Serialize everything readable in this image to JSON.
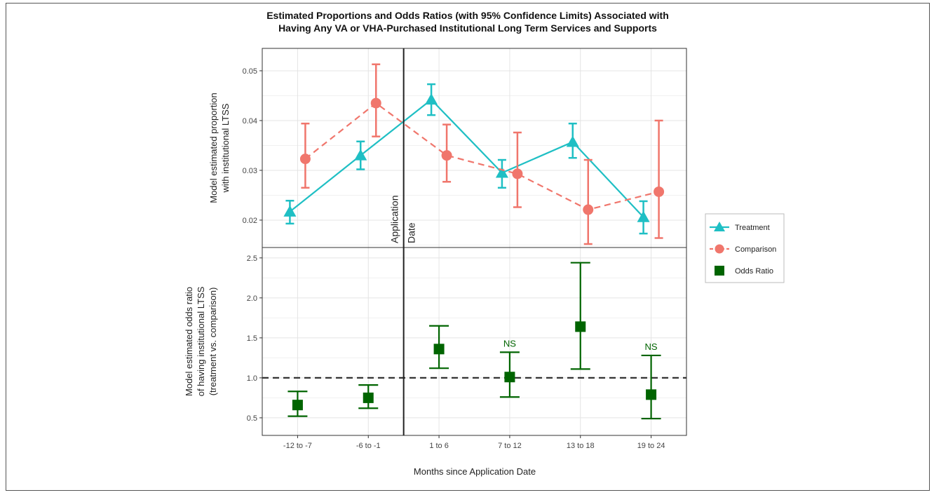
{
  "chart_data": {
    "type": "line",
    "title": [
      "Estimated Proportions and Odds Ratios (with 95% Confidence Limits) Associated with",
      "Having Any VA or VHA-Purchased Institutional Long Term Services and Supports"
    ],
    "xlabel": "Months since Application Date",
    "categories": [
      "-12 to -7",
      "-6 to -1",
      "1 to 6",
      "7 to 12",
      "13 to 18",
      "19 to 24"
    ],
    "application_date_label": [
      "Application",
      "Date"
    ],
    "top_panel": {
      "ylabel": [
        "Model estimated proportion",
        "with institutional LTSS"
      ],
      "ylim": [
        0.0145,
        0.0545
      ],
      "yticks": [
        0.02,
        0.03,
        0.04,
        0.05
      ],
      "ytick_labels": [
        "0.02",
        "0.03",
        "0.04",
        "0.05"
      ],
      "series": [
        {
          "name": "Treatment",
          "color": "#1fbfc4",
          "marker": "triangle",
          "line": "solid",
          "values": [
            0.0217,
            0.033,
            0.0442,
            0.0295,
            0.0357,
            0.0206
          ],
          "lower": [
            0.0193,
            0.0302,
            0.0411,
            0.0265,
            0.0325,
            0.0173
          ],
          "upper": [
            0.0239,
            0.0358,
            0.0473,
            0.0321,
            0.0394,
            0.0238
          ]
        },
        {
          "name": "Comparison",
          "color": "#f0766c",
          "marker": "circle",
          "line": "dashed",
          "values": [
            0.0323,
            0.0435,
            0.033,
            0.0293,
            0.0221,
            0.0257
          ],
          "lower": [
            0.0265,
            0.0368,
            0.0277,
            0.0226,
            0.0152,
            0.0164
          ],
          "upper": [
            0.0394,
            0.0513,
            0.0392,
            0.0376,
            0.0321,
            0.04
          ]
        }
      ]
    },
    "bottom_panel": {
      "ylabel": [
        "Model estimated odds ratio",
        "of having institutional LTSS",
        "(treatment vs. comparison)"
      ],
      "ylim": [
        0.28,
        2.63
      ],
      "yticks": [
        0.5,
        1.0,
        1.5,
        2.0,
        2.5
      ],
      "ytick_labels": [
        "0.5",
        "1.0",
        "1.5",
        "2.0",
        "2.5"
      ],
      "reference_line": 1.0,
      "series": [
        {
          "name": "Odds Ratio",
          "color": "#006400",
          "marker": "square",
          "values": [
            0.66,
            0.75,
            1.36,
            1.01,
            1.64,
            0.79
          ],
          "lower": [
            0.52,
            0.62,
            1.12,
            0.76,
            1.11,
            0.49
          ],
          "upper": [
            0.83,
            0.91,
            1.65,
            1.32,
            2.44,
            1.28
          ],
          "annotations": [
            "",
            "",
            "",
            "NS",
            "",
            "NS"
          ]
        }
      ]
    },
    "legend": {
      "position": "right",
      "entries": [
        {
          "label": "Treatment",
          "color": "#1fbfc4",
          "marker": "triangle",
          "line": "solid"
        },
        {
          "label": "Comparison",
          "color": "#f0766c",
          "marker": "circle",
          "line": "dashed"
        },
        {
          "label": "Odds Ratio",
          "color": "#006400",
          "marker": "square",
          "line": "none"
        }
      ]
    },
    "grid": true
  }
}
